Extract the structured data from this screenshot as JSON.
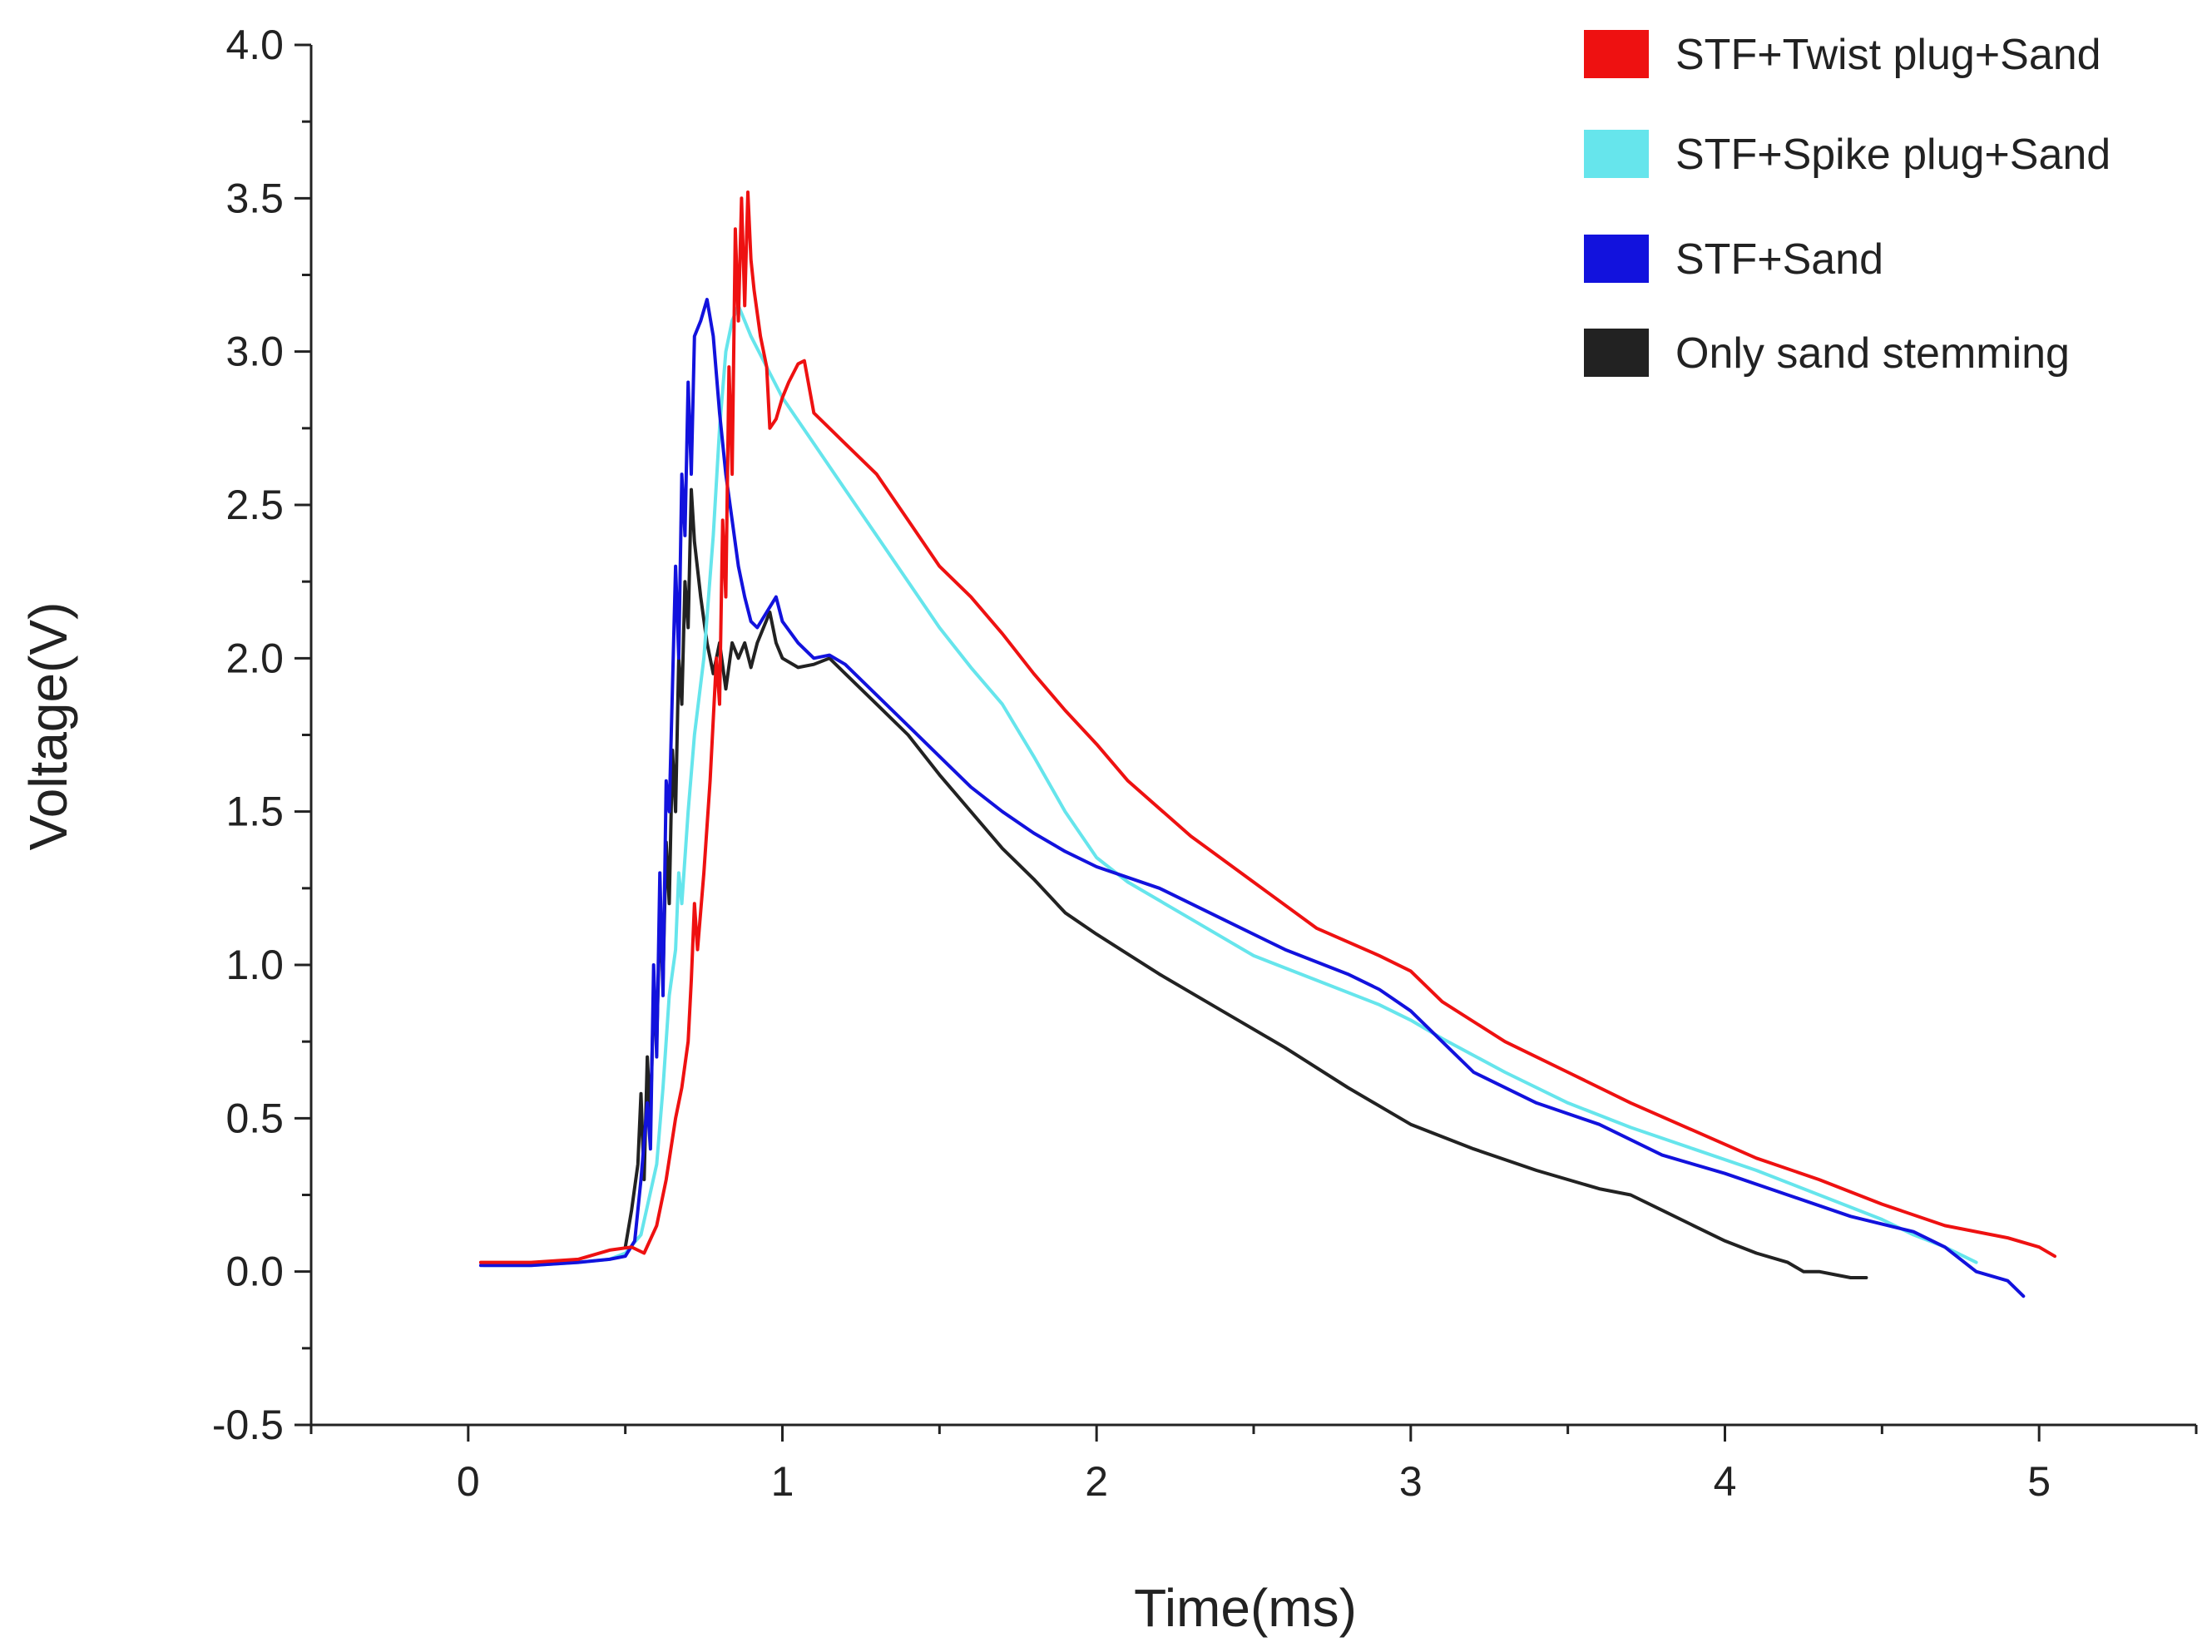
{
  "chart_data": {
    "type": "line",
    "title": "",
    "xlabel": "Time(ms)",
    "ylabel": "Voltage(V)",
    "xlim": [
      -0.5,
      5.5
    ],
    "ylim": [
      -0.5,
      4.0
    ],
    "xticks": [
      0,
      1,
      2,
      3,
      4,
      5
    ],
    "xtick_labels": [
      "0",
      "1",
      "2",
      "3",
      "4",
      "5"
    ],
    "yticks": [
      -0.5,
      0.0,
      0.5,
      1.0,
      1.5,
      2.0,
      2.5,
      3.0,
      3.5,
      4.0
    ],
    "ytick_labels": [
      "-0.5",
      "0.0",
      "0.5",
      "1.0",
      "1.5",
      "2.0",
      "2.5",
      "3.0",
      "3.5",
      "4.0"
    ],
    "grid": false,
    "legend_position": "top-right",
    "series": [
      {
        "name": "STF+Twist plug+Sand",
        "color": "#ee1111",
        "x": [
          0.04,
          0.2,
          0.35,
          0.45,
          0.52,
          0.56,
          0.6,
          0.63,
          0.66,
          0.68,
          0.7,
          0.71,
          0.72,
          0.73,
          0.75,
          0.77,
          0.79,
          0.8,
          0.81,
          0.82,
          0.83,
          0.84,
          0.85,
          0.86,
          0.87,
          0.88,
          0.89,
          0.9,
          0.91,
          0.93,
          0.95,
          0.96,
          0.98,
          1.0,
          1.02,
          1.05,
          1.07,
          1.1,
          1.2,
          1.3,
          1.4,
          1.5,
          1.6,
          1.7,
          1.8,
          1.9,
          2.0,
          2.1,
          2.3,
          2.5,
          2.7,
          2.9,
          3.0,
          3.1,
          3.3,
          3.5,
          3.7,
          3.9,
          4.1,
          4.3,
          4.5,
          4.7,
          4.9,
          5.0,
          5.05
        ],
        "values": [
          0.03,
          0.03,
          0.04,
          0.07,
          0.08,
          0.06,
          0.15,
          0.3,
          0.5,
          0.6,
          0.75,
          0.95,
          1.2,
          1.05,
          1.3,
          1.6,
          2.0,
          1.85,
          2.45,
          2.2,
          2.95,
          2.6,
          3.4,
          3.1,
          3.5,
          3.15,
          3.52,
          3.3,
          3.2,
          3.05,
          2.95,
          2.75,
          2.78,
          2.85,
          2.9,
          2.96,
          2.97,
          2.8,
          2.7,
          2.6,
          2.45,
          2.3,
          2.2,
          2.08,
          1.95,
          1.83,
          1.72,
          1.6,
          1.42,
          1.27,
          1.12,
          1.03,
          0.98,
          0.88,
          0.75,
          0.65,
          0.55,
          0.46,
          0.37,
          0.3,
          0.22,
          0.15,
          0.11,
          0.08,
          0.05
        ]
      },
      {
        "name": "STF+Spike plug+Sand",
        "color": "#66e5ec",
        "x": [
          0.05,
          0.2,
          0.35,
          0.45,
          0.5,
          0.55,
          0.6,
          0.62,
          0.64,
          0.66,
          0.67,
          0.68,
          0.7,
          0.72,
          0.75,
          0.78,
          0.8,
          0.82,
          0.84,
          0.86,
          0.88,
          0.9,
          0.95,
          1.0,
          1.1,
          1.2,
          1.3,
          1.4,
          1.5,
          1.6,
          1.7,
          1.8,
          1.9,
          2.0,
          2.1,
          2.3,
          2.5,
          2.7,
          2.9,
          3.0,
          3.1,
          3.3,
          3.5,
          3.7,
          3.9,
          4.1,
          4.3,
          4.5,
          4.6,
          4.7,
          4.8
        ],
        "values": [
          0.02,
          0.02,
          0.03,
          0.04,
          0.06,
          0.12,
          0.35,
          0.6,
          0.9,
          1.05,
          1.3,
          1.2,
          1.5,
          1.75,
          2.0,
          2.4,
          2.75,
          3.0,
          3.1,
          3.15,
          3.1,
          3.05,
          2.95,
          2.85,
          2.7,
          2.55,
          2.4,
          2.25,
          2.1,
          1.97,
          1.85,
          1.68,
          1.5,
          1.35,
          1.27,
          1.15,
          1.03,
          0.95,
          0.87,
          0.82,
          0.76,
          0.65,
          0.55,
          0.47,
          0.4,
          0.33,
          0.25,
          0.17,
          0.12,
          0.08,
          0.03
        ]
      },
      {
        "name": "STF+Sand",
        "color": "#1212dd",
        "x": [
          0.04,
          0.2,
          0.35,
          0.45,
          0.5,
          0.53,
          0.55,
          0.57,
          0.58,
          0.59,
          0.6,
          0.61,
          0.62,
          0.63,
          0.64,
          0.65,
          0.66,
          0.67,
          0.68,
          0.69,
          0.7,
          0.71,
          0.72,
          0.74,
          0.76,
          0.78,
          0.8,
          0.82,
          0.84,
          0.86,
          0.88,
          0.9,
          0.92,
          0.95,
          0.98,
          1.0,
          1.05,
          1.1,
          1.15,
          1.2,
          1.3,
          1.4,
          1.5,
          1.6,
          1.7,
          1.8,
          1.9,
          2.0,
          2.2,
          2.4,
          2.6,
          2.8,
          2.9,
          3.0,
          3.1,
          3.2,
          3.4,
          3.6,
          3.8,
          4.0,
          4.2,
          4.4,
          4.6,
          4.7,
          4.8,
          4.9,
          4.95
        ],
        "values": [
          0.02,
          0.02,
          0.03,
          0.04,
          0.05,
          0.1,
          0.3,
          0.55,
          0.4,
          1.0,
          0.7,
          1.3,
          0.9,
          1.6,
          1.5,
          1.9,
          2.3,
          2.0,
          2.6,
          2.4,
          2.9,
          2.6,
          3.05,
          3.1,
          3.17,
          3.05,
          2.8,
          2.6,
          2.45,
          2.3,
          2.2,
          2.12,
          2.1,
          2.15,
          2.2,
          2.12,
          2.05,
          2.0,
          2.01,
          1.98,
          1.88,
          1.78,
          1.68,
          1.58,
          1.5,
          1.43,
          1.37,
          1.32,
          1.25,
          1.15,
          1.05,
          0.97,
          0.92,
          0.85,
          0.75,
          0.65,
          0.55,
          0.48,
          0.38,
          0.32,
          0.25,
          0.18,
          0.13,
          0.08,
          0.0,
          -0.03,
          -0.08
        ]
      },
      {
        "name": "Only sand stemming",
        "color": "#222222",
        "x": [
          0.5,
          0.52,
          0.54,
          0.55,
          0.56,
          0.57,
          0.58,
          0.59,
          0.6,
          0.61,
          0.62,
          0.63,
          0.64,
          0.65,
          0.66,
          0.67,
          0.68,
          0.69,
          0.7,
          0.71,
          0.72,
          0.74,
          0.76,
          0.78,
          0.8,
          0.82,
          0.84,
          0.86,
          0.88,
          0.9,
          0.92,
          0.94,
          0.96,
          0.98,
          1.0,
          1.05,
          1.1,
          1.15,
          1.2,
          1.3,
          1.4,
          1.5,
          1.6,
          1.7,
          1.8,
          1.9,
          2.0,
          2.2,
          2.4,
          2.6,
          2.8,
          3.0,
          3.2,
          3.4,
          3.6,
          3.7,
          3.8,
          3.9,
          4.0,
          4.1,
          4.2,
          4.25,
          4.3,
          4.35,
          4.4,
          4.45
        ],
        "values": [
          0.08,
          0.2,
          0.35,
          0.58,
          0.3,
          0.7,
          0.5,
          0.9,
          0.75,
          1.15,
          0.95,
          1.4,
          1.2,
          1.7,
          1.5,
          2.0,
          1.85,
          2.25,
          2.1,
          2.55,
          2.38,
          2.2,
          2.05,
          1.95,
          2.05,
          1.9,
          2.05,
          2.0,
          2.05,
          1.97,
          2.05,
          2.1,
          2.15,
          2.05,
          2.0,
          1.97,
          1.98,
          2.0,
          1.95,
          1.85,
          1.75,
          1.62,
          1.5,
          1.38,
          1.28,
          1.17,
          1.1,
          0.97,
          0.85,
          0.73,
          0.6,
          0.48,
          0.4,
          0.33,
          0.27,
          0.25,
          0.2,
          0.15,
          0.1,
          0.06,
          0.03,
          0.0,
          0.0,
          -0.01,
          -0.02,
          -0.02
        ]
      }
    ]
  }
}
